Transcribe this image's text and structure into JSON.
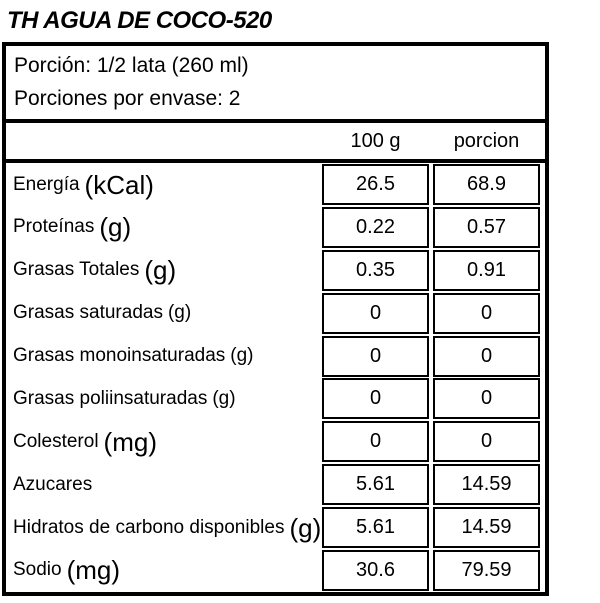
{
  "title": "TH AGUA DE COCO-520",
  "serving_info": {
    "line1": "Porción: 1/2 lata (260 ml)",
    "line2": "Porciones por envase: 2"
  },
  "table": {
    "col_headers": [
      "100 g",
      "porcion"
    ],
    "rows": [
      {
        "label": "Energía",
        "unit": "(kCal)",
        "unit_large": true,
        "per_100g": "26.5",
        "per_serving": "68.9"
      },
      {
        "label": "Proteínas",
        "unit": "(g)",
        "unit_large": true,
        "per_100g": "0.22",
        "per_serving": "0.57"
      },
      {
        "label": "Grasas Totales",
        "unit": "(g)",
        "unit_large": true,
        "per_100g": "0.35",
        "per_serving": "0.91"
      },
      {
        "label": "Grasas saturadas",
        "unit": "(g)",
        "unit_large": false,
        "per_100g": "0",
        "per_serving": "0"
      },
      {
        "label": "Grasas monoinsaturadas",
        "unit": "(g)",
        "unit_large": false,
        "per_100g": "0",
        "per_serving": "0"
      },
      {
        "label": "Grasas poliinsaturadas",
        "unit": "(g)",
        "unit_large": false,
        "per_100g": "0",
        "per_serving": "0"
      },
      {
        "label": "Colesterol",
        "unit": "(mg)",
        "unit_large": true,
        "per_100g": "0",
        "per_serving": "0"
      },
      {
        "label": "Azucares",
        "unit": "",
        "unit_large": false,
        "per_100g": "5.61",
        "per_serving": "14.59"
      },
      {
        "label": "Hidratos de carbono disponibles",
        "unit": "(g)",
        "unit_large": true,
        "per_100g": "5.61",
        "per_serving": "14.59"
      },
      {
        "label": "Sodio",
        "unit": "(mg)",
        "unit_large": true,
        "per_100g": "30.6",
        "per_serving": "79.59"
      }
    ]
  },
  "colors": {
    "border": "#000000",
    "background": "#ffffff",
    "text": "#000000"
  }
}
